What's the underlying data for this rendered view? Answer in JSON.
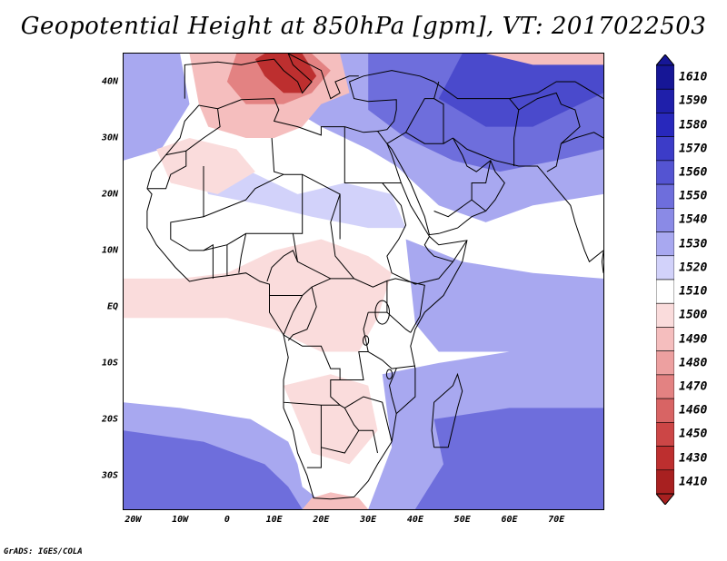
{
  "title": "Geopotential Height at 850hPa [gpm], VT: 2017022503",
  "lat_labels": [
    "40N",
    "30N",
    "20N",
    "10N",
    "EQ",
    "10S",
    "20S",
    "30S"
  ],
  "lon_labels": [
    "20W",
    "10W",
    "0",
    "10E",
    "20E",
    "30E",
    "40E",
    "50E",
    "60E",
    "70E"
  ],
  "legend": {
    "levels": [
      "1610",
      "1590",
      "1580",
      "1570",
      "1560",
      "1550",
      "1540",
      "1530",
      "1520",
      "1510",
      "1500",
      "1490",
      "1480",
      "1470",
      "1460",
      "1450",
      "1430",
      "1410"
    ],
    "colors": [
      "#161696",
      "#1f1faa",
      "#2828bc",
      "#3c3cc8",
      "#5454d2",
      "#6e6edc",
      "#8a8ae6",
      "#a8a8f0",
      "#d2d2fa",
      "#ffffff",
      "#fadcdc",
      "#f5bebe",
      "#eda0a0",
      "#e38282",
      "#d86464",
      "#cc4646",
      "#bd2f2f",
      "#a82020"
    ]
  },
  "footer": "GrADS: IGES/COLA",
  "map": {
    "lon_range": [
      -22,
      80
    ],
    "lat_range": [
      -36,
      45
    ],
    "colors": {
      "deep_blue": "#4a4acc",
      "mid_blue": "#6e6edc",
      "light_blue": "#a8a8f0",
      "pale_blue": "#d2d2fa",
      "pale_red": "#fadcdc",
      "light_red": "#f5bebe",
      "mid_red": "#e38282",
      "deep_red": "#bd2f2f",
      "coast": "#000000"
    }
  }
}
